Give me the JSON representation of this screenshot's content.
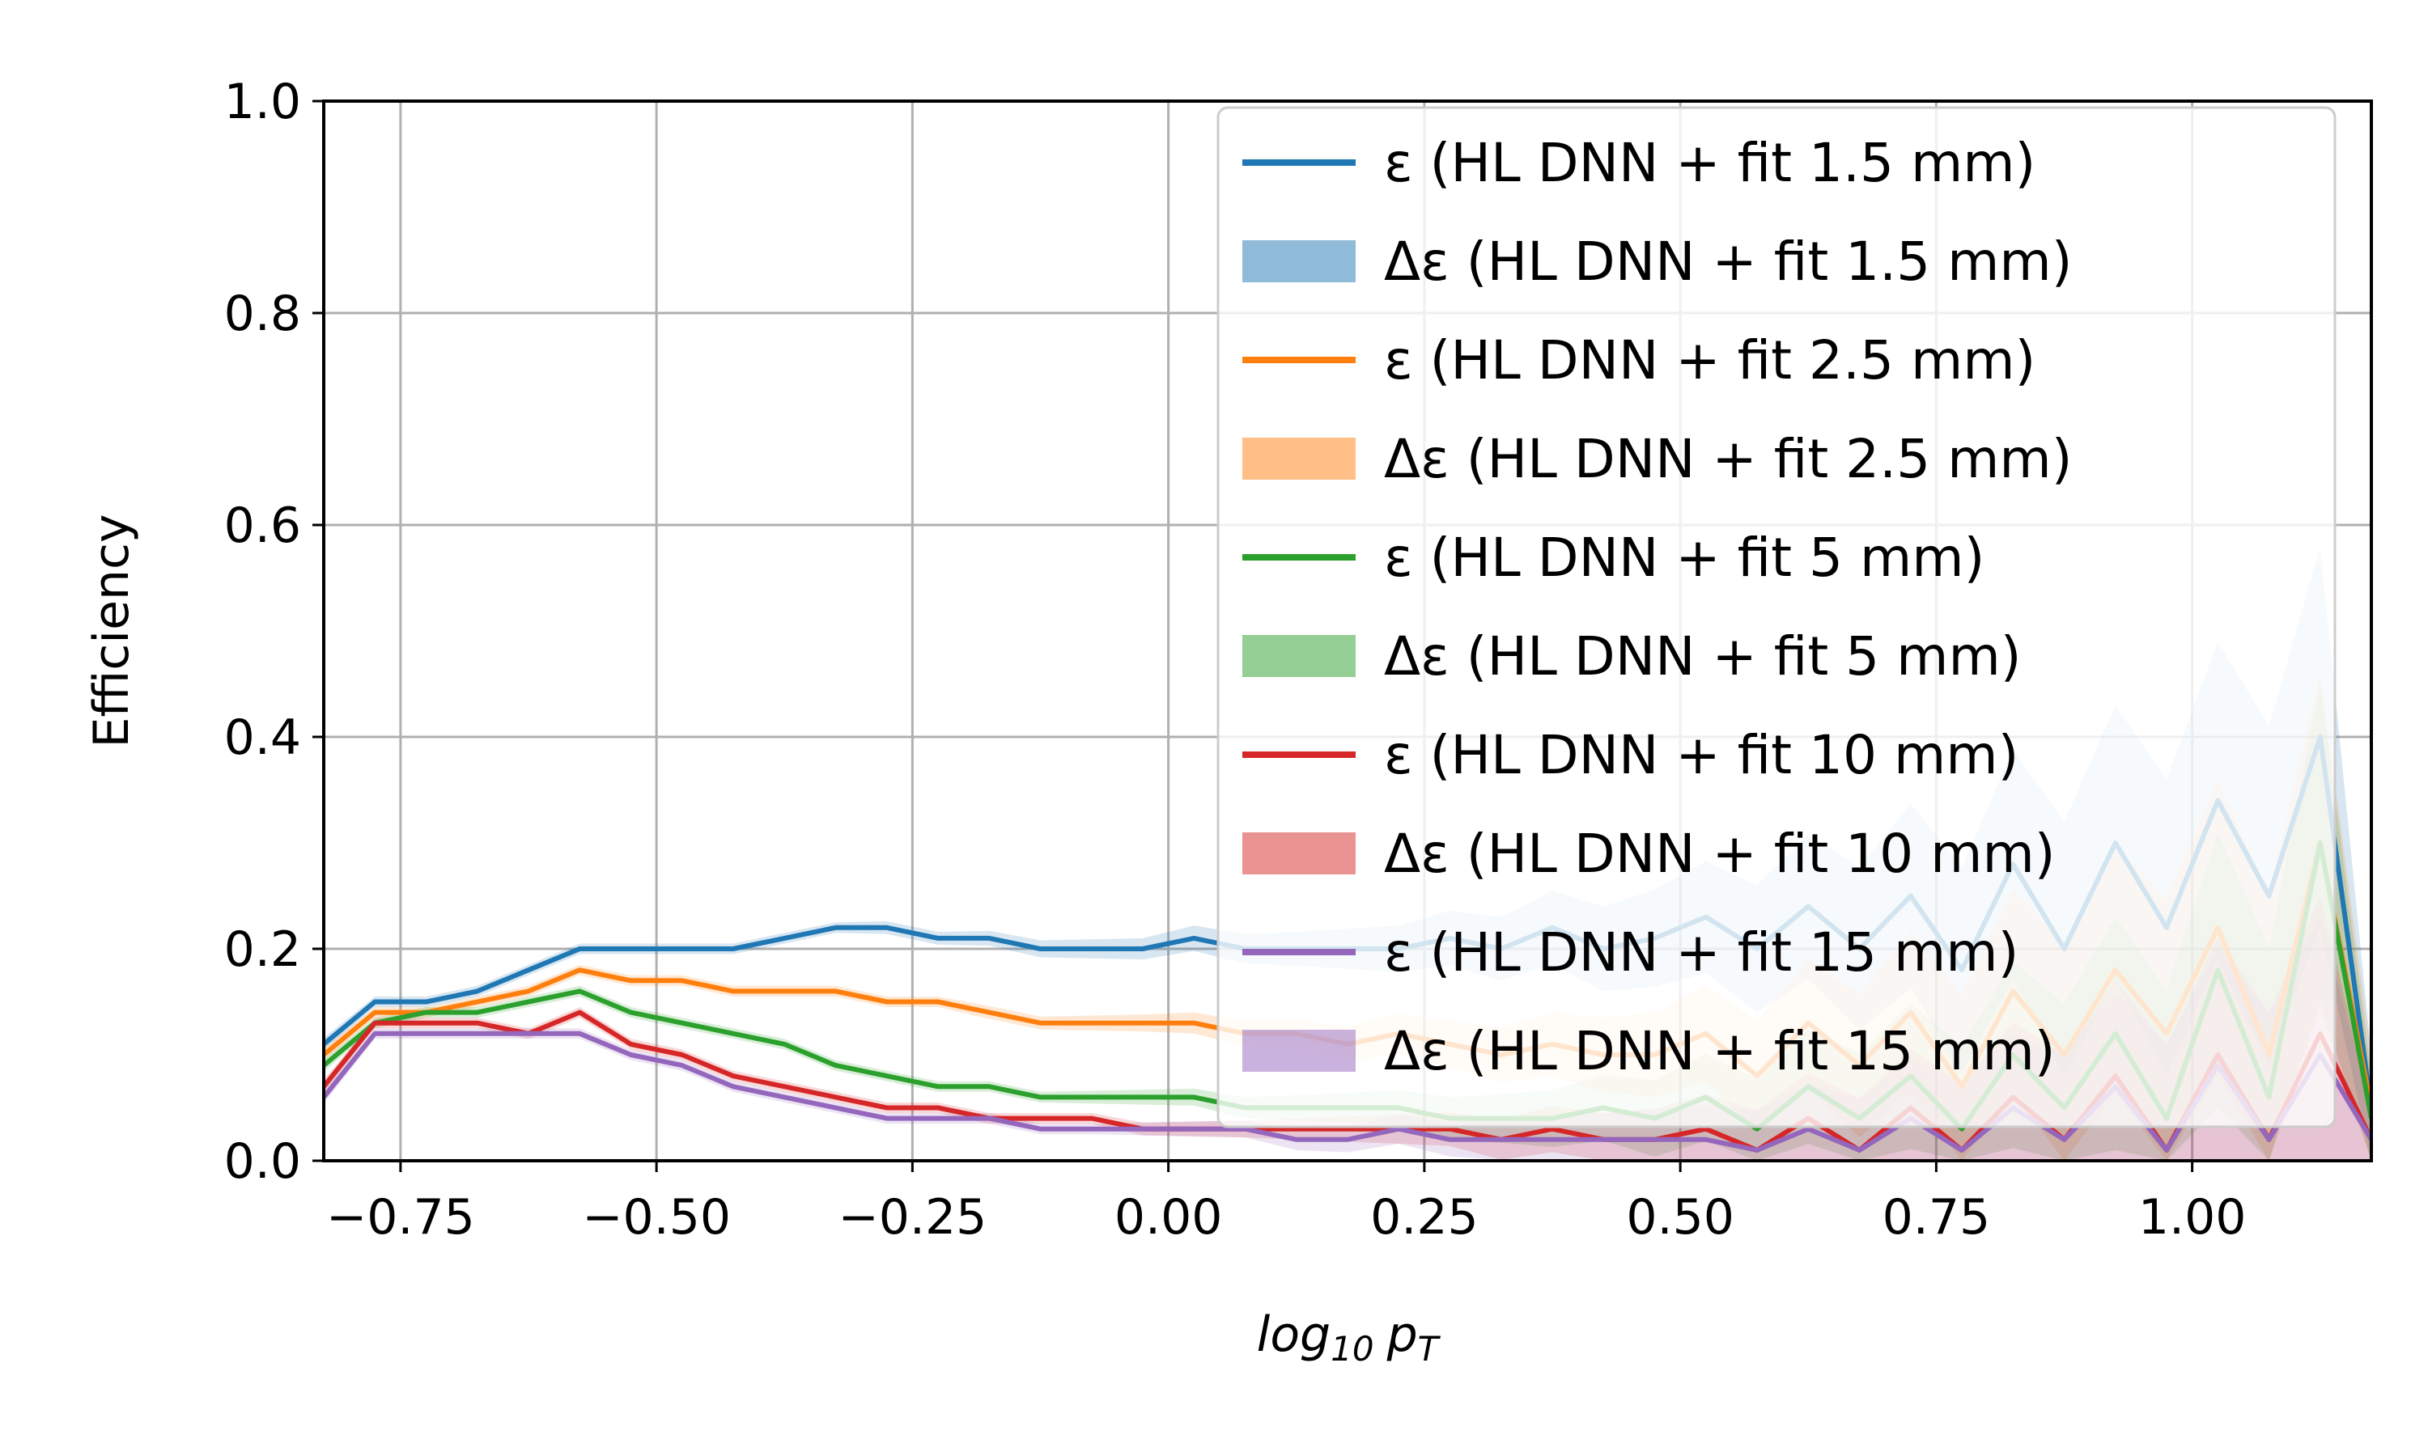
{
  "chart_data": {
    "type": "line",
    "xlabel": "log10 pT",
    "ylabel": "Efficiency",
    "xlim": [
      -0.825,
      1.175
    ],
    "ylim": [
      0.0,
      1.0
    ],
    "xticks": [
      "−0.75",
      "−0.50",
      "−0.25",
      "0.00",
      "0.25",
      "0.50",
      "0.75",
      "1.00"
    ],
    "yticks": [
      "0.0",
      "0.2",
      "0.4",
      "0.6",
      "0.8",
      "1.0"
    ],
    "grid": true,
    "legend_position": "top-right",
    "legend": [
      {
        "label": "ε (HL DNN + fit 1.5 mm)",
        "kind": "line",
        "color": "#1f77b4"
      },
      {
        "label": "Δε (HL DNN + fit 1.5 mm)",
        "kind": "band",
        "color": "#1f77b4"
      },
      {
        "label": "ε (HL DNN + fit 2.5 mm)",
        "kind": "line",
        "color": "#ff7f0e"
      },
      {
        "label": "Δε (HL DNN + fit 2.5 mm)",
        "kind": "band",
        "color": "#ff7f0e"
      },
      {
        "label": "ε (HL DNN + fit 5 mm)",
        "kind": "line",
        "color": "#2ca02c"
      },
      {
        "label": "Δε (HL DNN + fit 5 mm)",
        "kind": "band",
        "color": "#2ca02c"
      },
      {
        "label": "ε (HL DNN + fit 10 mm)",
        "kind": "line",
        "color": "#d62728"
      },
      {
        "label": "Δε (HL DNN + fit 10 mm)",
        "kind": "band",
        "color": "#d62728"
      },
      {
        "label": "ε (HL DNN + fit 15 mm)",
        "kind": "line",
        "color": "#9467bd"
      },
      {
        "label": "Δε (HL DNN + fit 15 mm)",
        "kind": "band",
        "color": "#9467bd"
      }
    ],
    "x": [
      -0.825,
      -0.775,
      -0.725,
      -0.675,
      -0.625,
      -0.575,
      -0.525,
      -0.475,
      -0.425,
      -0.375,
      -0.325,
      -0.275,
      -0.225,
      -0.175,
      -0.125,
      -0.075,
      -0.025,
      0.025,
      0.075,
      0.125,
      0.175,
      0.225,
      0.275,
      0.325,
      0.375,
      0.425,
      0.475,
      0.525,
      0.575,
      0.625,
      0.675,
      0.725,
      0.775,
      0.825,
      0.875,
      0.925,
      0.975,
      1.025,
      1.075,
      1.125,
      1.175
    ],
    "series": [
      {
        "name": "ε (HL DNN + fit 1.5 mm)",
        "color": "#1f77b4",
        "values": [
          0.11,
          0.15,
          0.15,
          0.16,
          0.18,
          0.2,
          0.2,
          0.2,
          0.2,
          0.21,
          0.22,
          0.22,
          0.21,
          0.21,
          0.2,
          0.2,
          0.2,
          0.21,
          0.2,
          0.2,
          0.2,
          0.2,
          0.21,
          0.2,
          0.22,
          0.2,
          0.21,
          0.23,
          0.2,
          0.24,
          0.2,
          0.25,
          0.18,
          0.28,
          0.2,
          0.3,
          0.22,
          0.34,
          0.25,
          0.4,
          0.05
        ],
        "err": [
          0.006,
          0.005,
          0.005,
          0.005,
          0.005,
          0.005,
          0.005,
          0.005,
          0.005,
          0.005,
          0.005,
          0.006,
          0.006,
          0.007,
          0.008,
          0.009,
          0.01,
          0.012,
          0.014,
          0.016,
          0.019,
          0.022,
          0.026,
          0.03,
          0.035,
          0.04,
          0.046,
          0.053,
          0.06,
          0.068,
          0.077,
          0.087,
          0.097,
          0.108,
          0.12,
          0.13,
          0.14,
          0.15,
          0.16,
          0.18,
          0.05
        ]
      },
      {
        "name": "ε (HL DNN + fit 2.5 mm)",
        "color": "#ff7f0e",
        "values": [
          0.1,
          0.14,
          0.14,
          0.15,
          0.16,
          0.18,
          0.17,
          0.17,
          0.16,
          0.16,
          0.16,
          0.15,
          0.15,
          0.14,
          0.13,
          0.13,
          0.13,
          0.13,
          0.12,
          0.12,
          0.11,
          0.12,
          0.11,
          0.1,
          0.11,
          0.1,
          0.1,
          0.12,
          0.08,
          0.13,
          0.09,
          0.14,
          0.07,
          0.16,
          0.1,
          0.18,
          0.12,
          0.22,
          0.1,
          0.3,
          0.05
        ],
        "err": [
          0.006,
          0.005,
          0.005,
          0.005,
          0.005,
          0.005,
          0.005,
          0.005,
          0.005,
          0.005,
          0.005,
          0.005,
          0.005,
          0.006,
          0.006,
          0.007,
          0.008,
          0.01,
          0.012,
          0.014,
          0.016,
          0.019,
          0.022,
          0.026,
          0.03,
          0.035,
          0.04,
          0.046,
          0.052,
          0.06,
          0.068,
          0.077,
          0.086,
          0.096,
          0.106,
          0.117,
          0.128,
          0.14,
          0.15,
          0.16,
          0.05
        ]
      },
      {
        "name": "ε (HL DNN + fit 5 mm)",
        "color": "#2ca02c",
        "values": [
          0.09,
          0.13,
          0.14,
          0.14,
          0.15,
          0.16,
          0.14,
          0.13,
          0.12,
          0.11,
          0.09,
          0.08,
          0.07,
          0.07,
          0.06,
          0.06,
          0.06,
          0.06,
          0.05,
          0.05,
          0.05,
          0.05,
          0.04,
          0.04,
          0.04,
          0.05,
          0.04,
          0.06,
          0.03,
          0.07,
          0.04,
          0.08,
          0.03,
          0.1,
          0.05,
          0.12,
          0.04,
          0.18,
          0.06,
          0.3,
          0.04
        ],
        "err": [
          0.006,
          0.005,
          0.005,
          0.005,
          0.005,
          0.005,
          0.005,
          0.005,
          0.005,
          0.005,
          0.005,
          0.005,
          0.005,
          0.005,
          0.005,
          0.006,
          0.007,
          0.008,
          0.01,
          0.012,
          0.014,
          0.017,
          0.02,
          0.023,
          0.027,
          0.031,
          0.036,
          0.041,
          0.047,
          0.054,
          0.061,
          0.069,
          0.078,
          0.088,
          0.098,
          0.11,
          0.12,
          0.13,
          0.14,
          0.15,
          0.04
        ]
      },
      {
        "name": "ε (HL DNN + fit 10 mm)",
        "color": "#d62728",
        "values": [
          0.07,
          0.13,
          0.13,
          0.13,
          0.12,
          0.14,
          0.11,
          0.1,
          0.08,
          0.07,
          0.06,
          0.05,
          0.05,
          0.04,
          0.04,
          0.04,
          0.03,
          0.03,
          0.03,
          0.03,
          0.03,
          0.03,
          0.03,
          0.02,
          0.03,
          0.02,
          0.02,
          0.03,
          0.01,
          0.04,
          0.01,
          0.05,
          0.01,
          0.06,
          0.02,
          0.08,
          0.01,
          0.1,
          0.02,
          0.12,
          0.02
        ],
        "err": [
          0.006,
          0.005,
          0.005,
          0.005,
          0.005,
          0.005,
          0.005,
          0.005,
          0.005,
          0.005,
          0.005,
          0.005,
          0.005,
          0.005,
          0.005,
          0.005,
          0.006,
          0.007,
          0.008,
          0.01,
          0.012,
          0.014,
          0.016,
          0.019,
          0.022,
          0.025,
          0.029,
          0.033,
          0.038,
          0.043,
          0.049,
          0.056,
          0.063,
          0.071,
          0.08,
          0.09,
          0.1,
          0.11,
          0.12,
          0.13,
          0.03
        ]
      },
      {
        "name": "ε (HL DNN + fit 15 mm)",
        "color": "#9467bd",
        "values": [
          0.06,
          0.12,
          0.12,
          0.12,
          0.12,
          0.12,
          0.1,
          0.09,
          0.07,
          0.06,
          0.05,
          0.04,
          0.04,
          0.04,
          0.03,
          0.03,
          0.03,
          0.03,
          0.03,
          0.02,
          0.02,
          0.03,
          0.02,
          0.02,
          0.02,
          0.02,
          0.02,
          0.02,
          0.01,
          0.03,
          0.01,
          0.04,
          0.01,
          0.05,
          0.02,
          0.07,
          0.01,
          0.09,
          0.02,
          0.1,
          0.02
        ],
        "err": [
          0.006,
          0.005,
          0.005,
          0.005,
          0.005,
          0.005,
          0.005,
          0.005,
          0.005,
          0.005,
          0.005,
          0.005,
          0.005,
          0.005,
          0.005,
          0.005,
          0.006,
          0.007,
          0.008,
          0.01,
          0.012,
          0.014,
          0.016,
          0.019,
          0.022,
          0.025,
          0.029,
          0.033,
          0.038,
          0.043,
          0.049,
          0.056,
          0.063,
          0.071,
          0.08,
          0.09,
          0.1,
          0.11,
          0.12,
          0.13,
          0.03
        ]
      }
    ]
  }
}
